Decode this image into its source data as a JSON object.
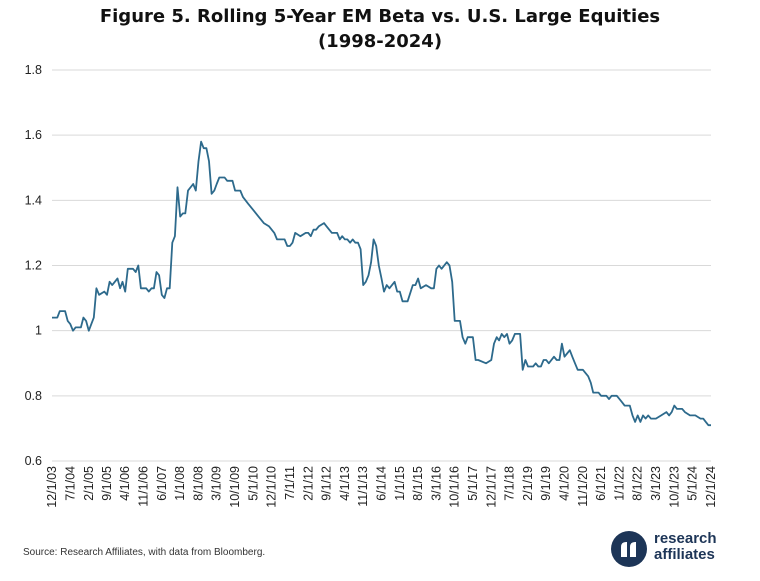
{
  "title": {
    "line1": "Figure 5. Rolling 5-Year EM Beta vs. U.S. Large Equities",
    "line2": "(1998-2024)"
  },
  "source": "Source: Research Affiliates, with data from Bloomberg.",
  "logo": {
    "line1": "research",
    "line2": "affiliates",
    "mark": "®"
  },
  "colors": {
    "line": "#2d6a8c",
    "grid": "#d9d9d9",
    "brand": "#1d3557"
  },
  "chart_data": {
    "type": "line",
    "title": "Figure 5. Rolling 5-Year EM Beta vs. U.S. Large Equities (1998-2024)",
    "xlabel": "",
    "ylabel": "",
    "ylim": [
      0.6,
      1.8
    ],
    "yticks": [
      "0.6",
      "0.8",
      "1",
      "1.2",
      "1.4",
      "1.6",
      "1.8"
    ],
    "grid": true,
    "xlim": [
      "2003-12-01",
      "2024-12-01"
    ],
    "xtick_labels": [
      "12/1/03",
      "7/1/04",
      "2/1/05",
      "9/1/05",
      "4/1/06",
      "11/1/06",
      "6/1/07",
      "1/1/08",
      "8/1/08",
      "3/1/09",
      "10/1/09",
      "5/1/10",
      "12/1/10",
      "7/1/11",
      "2/1/12",
      "9/1/12",
      "4/1/13",
      "11/1/13",
      "6/1/14",
      "1/1/15",
      "8/1/15",
      "3/1/16",
      "10/1/16",
      "5/1/17",
      "12/1/17",
      "7/1/18",
      "2/1/19",
      "9/1/19",
      "4/1/20",
      "11/1/20",
      "6/1/21",
      "1/1/22",
      "8/1/22",
      "3/1/23",
      "10/1/23",
      "5/1/24",
      "12/1/24"
    ],
    "xtick_dates": [
      "2003-12-01",
      "2004-07-01",
      "2005-02-01",
      "2005-09-01",
      "2006-04-01",
      "2006-11-01",
      "2007-06-01",
      "2008-01-01",
      "2008-08-01",
      "2009-03-01",
      "2009-10-01",
      "2010-05-01",
      "2010-12-01",
      "2011-07-01",
      "2012-02-01",
      "2012-09-01",
      "2013-04-01",
      "2013-11-01",
      "2014-06-01",
      "2015-01-01",
      "2015-08-01",
      "2016-03-01",
      "2016-10-01",
      "2017-05-01",
      "2017-12-01",
      "2018-07-01",
      "2019-02-01",
      "2019-09-01",
      "2020-04-01",
      "2020-11-01",
      "2021-06-01",
      "2022-01-01",
      "2022-08-01",
      "2023-03-01",
      "2023-10-01",
      "2024-05-01",
      "2024-12-01"
    ],
    "series": [
      {
        "name": "",
        "points": [
          [
            "2003-12-01",
            1.04
          ],
          [
            "2004-02-01",
            1.04
          ],
          [
            "2004-03-01",
            1.06
          ],
          [
            "2004-05-01",
            1.06
          ],
          [
            "2004-06-01",
            1.03
          ],
          [
            "2004-07-01",
            1.02
          ],
          [
            "2004-08-01",
            1.0
          ],
          [
            "2004-09-01",
            1.01
          ],
          [
            "2004-11-01",
            1.01
          ],
          [
            "2004-12-01",
            1.04
          ],
          [
            "2005-01-01",
            1.03
          ],
          [
            "2005-02-01",
            1.0
          ],
          [
            "2005-04-01",
            1.04
          ],
          [
            "2005-05-01",
            1.13
          ],
          [
            "2005-06-01",
            1.11
          ],
          [
            "2005-08-01",
            1.12
          ],
          [
            "2005-09-01",
            1.11
          ],
          [
            "2005-10-01",
            1.15
          ],
          [
            "2005-11-01",
            1.14
          ],
          [
            "2006-01-01",
            1.16
          ],
          [
            "2006-02-01",
            1.13
          ],
          [
            "2006-03-01",
            1.15
          ],
          [
            "2006-04-01",
            1.12
          ],
          [
            "2006-05-01",
            1.19
          ],
          [
            "2006-07-01",
            1.19
          ],
          [
            "2006-08-01",
            1.18
          ],
          [
            "2006-09-01",
            1.2
          ],
          [
            "2006-10-01",
            1.13
          ],
          [
            "2006-12-01",
            1.13
          ],
          [
            "2007-01-01",
            1.12
          ],
          [
            "2007-02-01",
            1.13
          ],
          [
            "2007-03-01",
            1.13
          ],
          [
            "2007-04-01",
            1.18
          ],
          [
            "2007-05-01",
            1.17
          ],
          [
            "2007-06-01",
            1.11
          ],
          [
            "2007-07-01",
            1.1
          ],
          [
            "2007-08-01",
            1.13
          ],
          [
            "2007-09-01",
            1.13
          ],
          [
            "2007-10-01",
            1.27
          ],
          [
            "2007-11-01",
            1.29
          ],
          [
            "2007-12-01",
            1.44
          ],
          [
            "2008-01-01",
            1.35
          ],
          [
            "2008-02-01",
            1.36
          ],
          [
            "2008-03-01",
            1.36
          ],
          [
            "2008-04-01",
            1.43
          ],
          [
            "2008-06-01",
            1.45
          ],
          [
            "2008-07-01",
            1.43
          ],
          [
            "2008-08-01",
            1.52
          ],
          [
            "2008-09-01",
            1.58
          ],
          [
            "2008-10-01",
            1.56
          ],
          [
            "2008-11-01",
            1.56
          ],
          [
            "2008-12-01",
            1.52
          ],
          [
            "2009-01-01",
            1.42
          ],
          [
            "2009-02-01",
            1.43
          ],
          [
            "2009-03-01",
            1.45
          ],
          [
            "2009-04-01",
            1.47
          ],
          [
            "2009-06-01",
            1.47
          ],
          [
            "2009-07-01",
            1.46
          ],
          [
            "2009-09-01",
            1.46
          ],
          [
            "2009-10-01",
            1.43
          ],
          [
            "2009-12-01",
            1.43
          ],
          [
            "2010-01-01",
            1.41
          ],
          [
            "2010-03-01",
            1.39
          ],
          [
            "2010-05-01",
            1.37
          ],
          [
            "2010-07-01",
            1.35
          ],
          [
            "2010-09-01",
            1.33
          ],
          [
            "2010-11-01",
            1.32
          ],
          [
            "2011-01-01",
            1.3
          ],
          [
            "2011-02-01",
            1.28
          ],
          [
            "2011-05-01",
            1.28
          ],
          [
            "2011-06-01",
            1.26
          ],
          [
            "2011-07-01",
            1.26
          ],
          [
            "2011-08-01",
            1.27
          ],
          [
            "2011-09-01",
            1.3
          ],
          [
            "2011-11-01",
            1.29
          ],
          [
            "2012-01-01",
            1.3
          ],
          [
            "2012-02-01",
            1.3
          ],
          [
            "2012-03-01",
            1.29
          ],
          [
            "2012-04-01",
            1.31
          ],
          [
            "2012-05-01",
            1.31
          ],
          [
            "2012-06-01",
            1.32
          ],
          [
            "2012-08-01",
            1.33
          ],
          [
            "2012-09-01",
            1.32
          ],
          [
            "2012-11-01",
            1.3
          ],
          [
            "2013-01-01",
            1.3
          ],
          [
            "2013-02-01",
            1.28
          ],
          [
            "2013-03-01",
            1.29
          ],
          [
            "2013-04-01",
            1.28
          ],
          [
            "2013-05-01",
            1.28
          ],
          [
            "2013-06-01",
            1.27
          ],
          [
            "2013-07-01",
            1.28
          ],
          [
            "2013-08-01",
            1.27
          ],
          [
            "2013-09-01",
            1.27
          ],
          [
            "2013-10-01",
            1.25
          ],
          [
            "2013-11-01",
            1.14
          ],
          [
            "2013-12-01",
            1.15
          ],
          [
            "2014-01-01",
            1.17
          ],
          [
            "2014-02-01",
            1.21
          ],
          [
            "2014-03-01",
            1.28
          ],
          [
            "2014-04-01",
            1.26
          ],
          [
            "2014-05-01",
            1.2
          ],
          [
            "2014-06-01",
            1.16
          ],
          [
            "2014-07-01",
            1.12
          ],
          [
            "2014-08-01",
            1.14
          ],
          [
            "2014-09-01",
            1.13
          ],
          [
            "2014-11-01",
            1.15
          ],
          [
            "2014-12-01",
            1.12
          ],
          [
            "2015-01-01",
            1.12
          ],
          [
            "2015-02-01",
            1.09
          ],
          [
            "2015-04-01",
            1.09
          ],
          [
            "2015-06-01",
            1.14
          ],
          [
            "2015-07-01",
            1.14
          ],
          [
            "2015-08-01",
            1.16
          ],
          [
            "2015-09-01",
            1.13
          ],
          [
            "2015-11-01",
            1.14
          ],
          [
            "2016-01-01",
            1.13
          ],
          [
            "2016-02-01",
            1.13
          ],
          [
            "2016-03-01",
            1.19
          ],
          [
            "2016-04-01",
            1.2
          ],
          [
            "2016-05-01",
            1.19
          ],
          [
            "2016-07-01",
            1.21
          ],
          [
            "2016-08-01",
            1.2
          ],
          [
            "2016-09-01",
            1.15
          ],
          [
            "2016-10-01",
            1.03
          ],
          [
            "2016-12-01",
            1.03
          ],
          [
            "2017-01-01",
            0.98
          ],
          [
            "2017-02-01",
            0.96
          ],
          [
            "2017-03-01",
            0.98
          ],
          [
            "2017-05-01",
            0.98
          ],
          [
            "2017-06-01",
            0.91
          ],
          [
            "2017-07-01",
            0.91
          ],
          [
            "2017-10-01",
            0.9
          ],
          [
            "2017-12-01",
            0.91
          ],
          [
            "2018-01-01",
            0.96
          ],
          [
            "2018-02-01",
            0.98
          ],
          [
            "2018-03-01",
            0.97
          ],
          [
            "2018-04-01",
            0.99
          ],
          [
            "2018-05-01",
            0.98
          ],
          [
            "2018-06-01",
            0.99
          ],
          [
            "2018-07-01",
            0.96
          ],
          [
            "2018-08-01",
            0.97
          ],
          [
            "2018-09-01",
            0.99
          ],
          [
            "2018-11-01",
            0.99
          ],
          [
            "2018-12-01",
            0.88
          ],
          [
            "2019-01-01",
            0.91
          ],
          [
            "2019-02-01",
            0.89
          ],
          [
            "2019-04-01",
            0.89
          ],
          [
            "2019-05-01",
            0.9
          ],
          [
            "2019-06-01",
            0.89
          ],
          [
            "2019-07-01",
            0.89
          ],
          [
            "2019-08-01",
            0.91
          ],
          [
            "2019-09-01",
            0.91
          ],
          [
            "2019-10-01",
            0.9
          ],
          [
            "2019-12-01",
            0.92
          ],
          [
            "2020-01-01",
            0.91
          ],
          [
            "2020-02-01",
            0.91
          ],
          [
            "2020-03-01",
            0.96
          ],
          [
            "2020-04-01",
            0.92
          ],
          [
            "2020-05-01",
            0.93
          ],
          [
            "2020-06-01",
            0.94
          ],
          [
            "2020-07-01",
            0.92
          ],
          [
            "2020-08-01",
            0.9
          ],
          [
            "2020-09-01",
            0.88
          ],
          [
            "2020-11-01",
            0.88
          ],
          [
            "2021-01-01",
            0.86
          ],
          [
            "2021-02-01",
            0.84
          ],
          [
            "2021-03-01",
            0.81
          ],
          [
            "2021-05-01",
            0.81
          ],
          [
            "2021-06-01",
            0.8
          ],
          [
            "2021-08-01",
            0.8
          ],
          [
            "2021-09-01",
            0.79
          ],
          [
            "2021-10-01",
            0.8
          ],
          [
            "2021-12-01",
            0.8
          ],
          [
            "2022-01-01",
            0.79
          ],
          [
            "2022-02-01",
            0.78
          ],
          [
            "2022-03-01",
            0.77
          ],
          [
            "2022-05-01",
            0.77
          ],
          [
            "2022-06-01",
            0.74
          ],
          [
            "2022-07-01",
            0.72
          ],
          [
            "2022-08-01",
            0.74
          ],
          [
            "2022-09-01",
            0.72
          ],
          [
            "2022-10-01",
            0.74
          ],
          [
            "2022-11-01",
            0.73
          ],
          [
            "2022-12-01",
            0.74
          ],
          [
            "2023-01-01",
            0.73
          ],
          [
            "2023-03-01",
            0.73
          ],
          [
            "2023-05-01",
            0.74
          ],
          [
            "2023-07-01",
            0.75
          ],
          [
            "2023-08-01",
            0.74
          ],
          [
            "2023-09-01",
            0.75
          ],
          [
            "2023-10-01",
            0.77
          ],
          [
            "2023-11-01",
            0.76
          ],
          [
            "2024-01-01",
            0.76
          ],
          [
            "2024-02-01",
            0.75
          ],
          [
            "2024-04-01",
            0.74
          ],
          [
            "2024-06-01",
            0.74
          ],
          [
            "2024-08-01",
            0.73
          ],
          [
            "2024-09-01",
            0.73
          ],
          [
            "2024-10-01",
            0.72
          ],
          [
            "2024-11-01",
            0.71
          ],
          [
            "2024-12-01",
            0.71
          ]
        ]
      }
    ]
  }
}
